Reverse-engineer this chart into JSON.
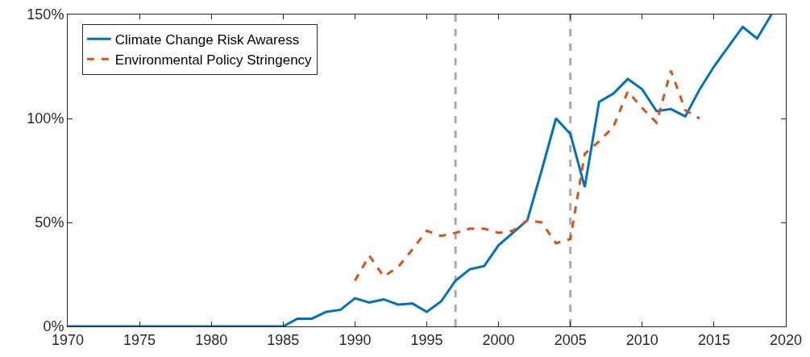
{
  "chart_data": {
    "type": "line",
    "x": [
      1970,
      1971,
      1972,
      1973,
      1974,
      1975,
      1976,
      1977,
      1978,
      1979,
      1980,
      1981,
      1982,
      1983,
      1984,
      1985,
      1986,
      1987,
      1988,
      1989,
      1990,
      1991,
      1992,
      1993,
      1994,
      1995,
      1996,
      1997,
      1998,
      1999,
      2000,
      2001,
      2002,
      2003,
      2004,
      2005,
      2006,
      2007,
      2008,
      2009,
      2010,
      2011,
      2012,
      2013,
      2014,
      2015,
      2016,
      2017,
      2018,
      2019
    ],
    "series": [
      {
        "name": "Climate Change Risk Awaress",
        "color": "#0072bd",
        "line_style": "solid",
        "values": [
          0,
          0,
          0,
          0,
          0,
          0,
          0,
          0,
          0,
          0,
          0,
          0,
          0,
          0,
          0,
          0,
          3.7,
          3.7,
          7,
          8,
          13.5,
          11.5,
          13,
          10.5,
          11,
          7,
          12,
          22,
          27.5,
          29,
          39,
          45,
          51,
          75,
          100,
          92.5,
          67,
          108,
          112,
          119,
          114,
          103.5,
          104.5,
          101,
          114,
          125,
          134.5,
          144,
          138.5,
          150
        ]
      },
      {
        "name": "Environmental Policy Stringency",
        "color": "#d95319",
        "line_style": "dashed",
        "values": [
          null,
          null,
          null,
          null,
          null,
          null,
          null,
          null,
          null,
          null,
          null,
          null,
          null,
          null,
          null,
          null,
          null,
          null,
          null,
          null,
          22,
          34,
          24,
          28.5,
          37,
          46,
          43.5,
          45,
          47,
          47,
          45,
          46,
          51,
          50,
          40,
          42,
          83,
          89,
          96,
          113,
          105,
          98,
          123,
          104,
          100,
          null,
          null,
          null,
          null,
          null
        ]
      }
    ],
    "xlim": [
      1970,
      2020
    ],
    "xticks": [
      1970,
      1975,
      1980,
      1985,
      1990,
      1995,
      2000,
      2005,
      2010,
      2015,
      2020
    ],
    "ylim": [
      0,
      150
    ],
    "yticks": [
      {
        "value": 0,
        "label": "0%"
      },
      {
        "value": 50,
        "label": "50%"
      },
      {
        "value": 100,
        "label": "100%"
      },
      {
        "value": 150,
        "label": "150%"
      }
    ],
    "ref_lines": [
      {
        "axis": "x",
        "value": 1997,
        "color": "#aaaaaa",
        "line_style": "dashed"
      },
      {
        "axis": "x",
        "value": 2005,
        "color": "#aaaaaa",
        "line_style": "dashed"
      }
    ],
    "grid": false,
    "legend": "top left",
    "marker": "none"
  }
}
